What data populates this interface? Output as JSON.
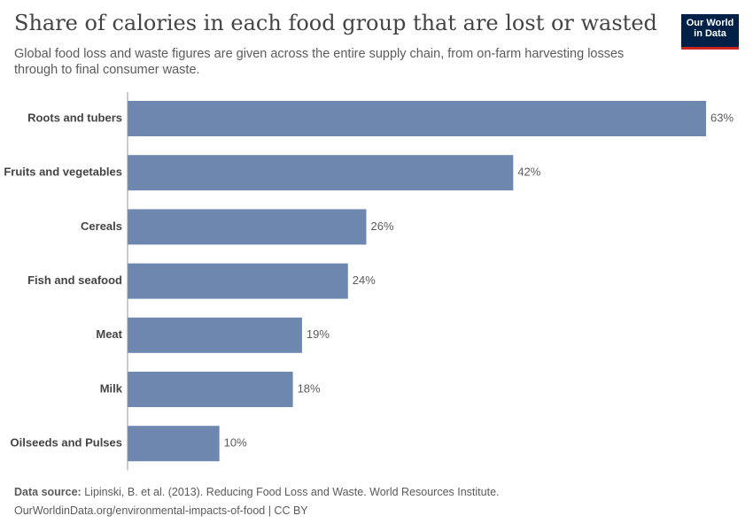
{
  "chart_data": {
    "type": "bar",
    "orientation": "horizontal",
    "title": "Share of calories in each food group that are lost or wasted",
    "subtitle": "Global food loss and waste figures are given across the entire supply chain, from on-farm harvesting losses through to final consumer waste.",
    "categories": [
      "Roots and tubers",
      "Fruits and vegetables",
      "Cereals",
      "Fish and seafood",
      "Meat",
      "Milk",
      "Oilseeds and Pulses"
    ],
    "values": [
      63,
      42,
      26,
      24,
      19,
      18,
      10
    ],
    "value_labels": [
      "63%",
      "42%",
      "26%",
      "24%",
      "19%",
      "18%",
      "10%"
    ],
    "color": "#6d87ae",
    "source_label": "Data source:",
    "source": "Lipinski, B. et al. (2013). Reducing Food Loss and Waste. World Resources Institute.",
    "url": "OurWorldinData.org/environmental-impacts-of-food | CC BY",
    "logo": [
      "Our World",
      "in Data"
    ]
  }
}
